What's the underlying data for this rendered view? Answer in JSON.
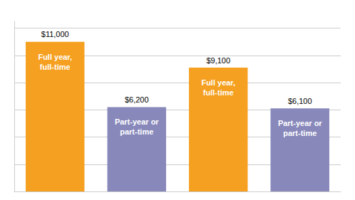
{
  "chart_data": {
    "type": "bar",
    "categories": [
      "Full year,\nfull-time",
      "Part-year or\npart-time",
      "Full year,\nfull-time",
      "Part-year or\npart-time"
    ],
    "values": [
      11000,
      6200,
      9100,
      6100
    ],
    "value_labels": [
      "$11,000",
      "$6,200",
      "$9,100",
      "$6,100"
    ],
    "data_labels": true,
    "colors": [
      "#F5A020",
      "#8888BB",
      "#F5A020",
      "#8888BB"
    ],
    "ylim": [
      0,
      12500
    ],
    "yticks": [
      0,
      2000,
      4000,
      6000,
      8000,
      10000,
      12000
    ],
    "grid": true,
    "tick_labels": false
  }
}
